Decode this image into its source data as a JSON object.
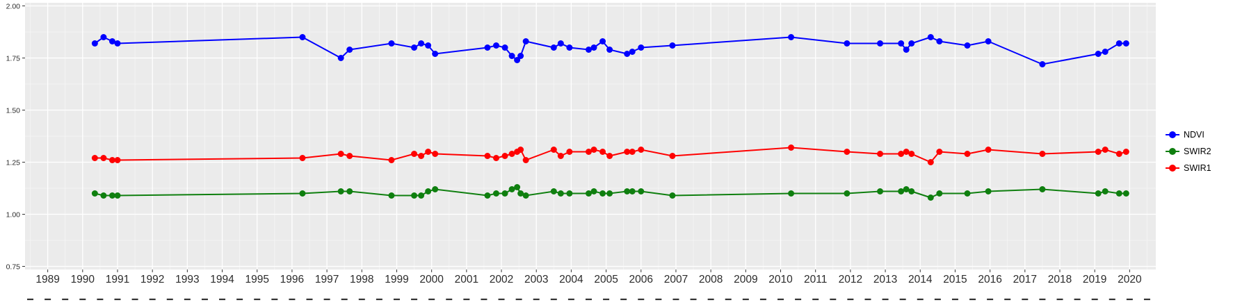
{
  "chart_data": {
    "type": "line",
    "title": "",
    "xlabel": "",
    "ylabel": "",
    "grid": true,
    "legend_position": "right",
    "panel_bg": "#ebebeb",
    "grid_major_color": "#ffffff",
    "grid_minor_color": "#ffffff",
    "tick_color": "#333333",
    "tick_label_color": "#2b2b2b",
    "xlim": [
      1988.35,
      2020.75
    ],
    "ylim": [
      0.735,
      2.015
    ],
    "x_ticks": [
      1989,
      1990,
      1991,
      1992,
      1993,
      1994,
      1995,
      1996,
      1997,
      1998,
      1999,
      2000,
      2001,
      2002,
      2003,
      2004,
      2005,
      2006,
      2007,
      2008,
      2009,
      2010,
      2011,
      2012,
      2013,
      2014,
      2015,
      2016,
      2017,
      2018,
      2019,
      2020
    ],
    "y_ticks": [
      "2.00",
      "1.75",
      "1.50",
      "1.25",
      "1.00",
      "0.75"
    ],
    "y_tick_values": [
      2.0,
      1.75,
      1.5,
      1.25,
      1.0,
      0.75
    ],
    "x": [
      1990.35,
      1990.6,
      1990.85,
      1991.0,
      1996.3,
      1997.4,
      1997.65,
      1998.85,
      1999.5,
      1999.7,
      1999.9,
      2000.1,
      2001.6,
      2001.85,
      2002.1,
      2002.3,
      2002.45,
      2002.55,
      2002.7,
      2003.5,
      2003.7,
      2003.95,
      2004.5,
      2004.65,
      2004.9,
      2005.1,
      2005.6,
      2005.75,
      2006.0,
      2006.9,
      2010.3,
      2011.9,
      2012.85,
      2013.45,
      2013.6,
      2013.75,
      2014.3,
      2014.55,
      2015.35,
      2015.95,
      2017.5,
      2019.1,
      2019.3,
      2019.7,
      2019.9
    ],
    "series": [
      {
        "name": "NDVI",
        "color": "#0000ff",
        "values": [
          1.82,
          1.85,
          1.83,
          1.82,
          1.85,
          1.75,
          1.79,
          1.82,
          1.8,
          1.82,
          1.81,
          1.77,
          1.8,
          1.81,
          1.8,
          1.76,
          1.74,
          1.76,
          1.83,
          1.8,
          1.82,
          1.8,
          1.79,
          1.8,
          1.83,
          1.79,
          1.77,
          1.78,
          1.8,
          1.81,
          1.85,
          1.82,
          1.82,
          1.82,
          1.79,
          1.82,
          1.85,
          1.83,
          1.81,
          1.83,
          1.72,
          1.77,
          1.78,
          1.82,
          1.82
        ]
      },
      {
        "name": "SWIR2",
        "color": "#0f7f0f",
        "values": [
          1.1,
          1.09,
          1.09,
          1.09,
          1.1,
          1.11,
          1.11,
          1.09,
          1.09,
          1.09,
          1.11,
          1.12,
          1.09,
          1.1,
          1.1,
          1.12,
          1.13,
          1.1,
          1.09,
          1.11,
          1.1,
          1.1,
          1.1,
          1.11,
          1.1,
          1.1,
          1.11,
          1.11,
          1.11,
          1.09,
          1.1,
          1.1,
          1.11,
          1.11,
          1.12,
          1.11,
          1.08,
          1.1,
          1.1,
          1.11,
          1.12,
          1.1,
          1.11,
          1.1,
          1.1
        ]
      },
      {
        "name": "SWIR1",
        "color": "#ff0000",
        "values": [
          1.27,
          1.27,
          1.26,
          1.26,
          1.27,
          1.29,
          1.28,
          1.26,
          1.29,
          1.28,
          1.3,
          1.29,
          1.28,
          1.27,
          1.28,
          1.29,
          1.3,
          1.31,
          1.26,
          1.31,
          1.28,
          1.3,
          1.3,
          1.31,
          1.3,
          1.28,
          1.3,
          1.3,
          1.31,
          1.28,
          1.32,
          1.3,
          1.29,
          1.29,
          1.3,
          1.29,
          1.25,
          1.3,
          1.29,
          1.31,
          1.29,
          1.3,
          1.31,
          1.29,
          1.3
        ]
      }
    ]
  }
}
